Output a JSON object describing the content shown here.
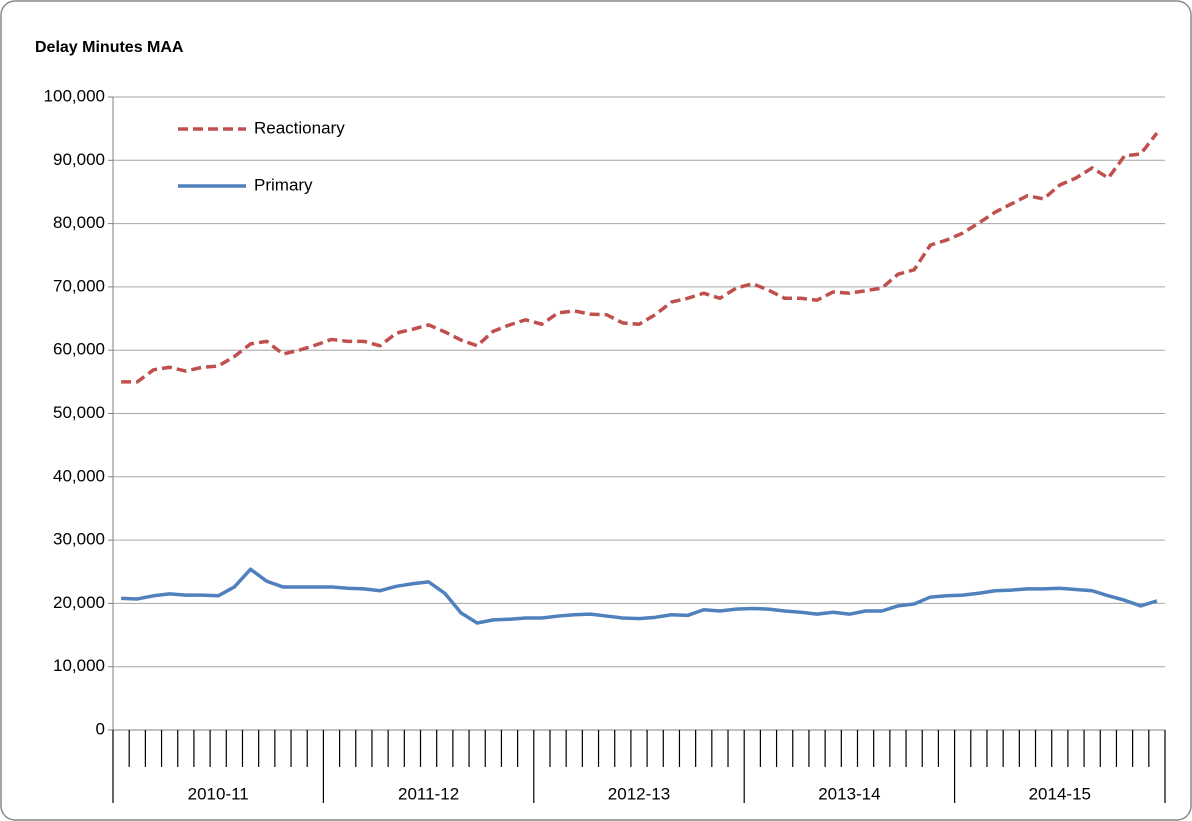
{
  "chart_data": {
    "type": "line",
    "title": "Delay Minutes MAA",
    "categories": [
      null,
      null,
      null,
      null,
      null,
      null,
      null,
      null,
      null,
      null,
      null,
      null,
      null,
      null,
      null,
      null,
      null,
      null,
      null,
      null,
      null,
      null,
      null,
      null,
      null,
      null,
      null,
      null,
      null,
      null,
      null,
      null,
      null,
      null,
      null,
      null,
      null,
      null,
      null,
      null,
      null,
      null,
      null,
      null,
      null,
      null,
      null,
      null,
      null,
      null,
      null,
      null,
      null,
      null,
      null,
      null,
      null,
      null,
      null,
      null,
      null,
      null,
      null,
      null,
      null
    ],
    "category_groups": [
      "2010-11",
      "2011-12",
      "2012-13",
      "2013-14",
      "2014-15"
    ],
    "series": [
      {
        "name": "Reactionary",
        "color": "#c0504d",
        "line_style": "dashed",
        "values": [
          55000,
          55000,
          56900,
          57300,
          56700,
          57300,
          57500,
          59000,
          61000,
          61400,
          59400,
          60000,
          60800,
          61700,
          61400,
          61400,
          60700,
          62700,
          63300,
          64000,
          62900,
          61600,
          60700,
          63000,
          64000,
          64800,
          64100,
          65900,
          66200,
          65700,
          65600,
          64300,
          64100,
          65600,
          67600,
          68200,
          69000,
          68200,
          69800,
          70500,
          69500,
          68200,
          68200,
          67900,
          69200,
          69000,
          69400,
          69800,
          72000,
          72700,
          76600,
          77400,
          78500,
          80100,
          81800,
          83100,
          84400,
          83900,
          86100,
          87200,
          88800,
          87200,
          90700,
          91000,
          94300
        ]
      },
      {
        "name": "Primary",
        "color": "#4f81bd",
        "line_style": "solid",
        "values": [
          20800,
          20700,
          21200,
          21500,
          21300,
          21300,
          21200,
          22600,
          25400,
          23500,
          22600,
          22600,
          22600,
          22600,
          22400,
          22300,
          22000,
          22700,
          23100,
          23400,
          21600,
          18500,
          16900,
          17400,
          17500,
          17700,
          17700,
          18000,
          18200,
          18300,
          18000,
          17700,
          17600,
          17800,
          18200,
          18100,
          19000,
          18800,
          19100,
          19200,
          19100,
          18800,
          18600,
          18300,
          18600,
          18300,
          18800,
          18800,
          19600,
          19900,
          21000,
          21200,
          21300,
          21600,
          22000,
          22100,
          22300,
          22300,
          22400,
          22200,
          22000,
          21200,
          20500,
          19600,
          20400
        ]
      }
    ],
    "ylim": [
      0,
      100000
    ],
    "yticks": [
      0,
      {
        "value": 10000,
        "label": "10,000"
      },
      {
        "value": 20000,
        "label": "20,000"
      },
      {
        "value": 30000,
        "label": "30,000"
      },
      {
        "value": 40000,
        "label": "40,000"
      },
      {
        "value": 50000,
        "label": "50,000"
      },
      {
        "value": 60000,
        "label": "60,000"
      },
      {
        "value": 70000,
        "label": "70,000"
      },
      {
        "value": 80000,
        "label": "80,000"
      },
      {
        "value": 90000,
        "label": "90,000"
      },
      {
        "value": 100000,
        "label": "100,000"
      }
    ],
    "grid": true,
    "legend": "top-left"
  }
}
